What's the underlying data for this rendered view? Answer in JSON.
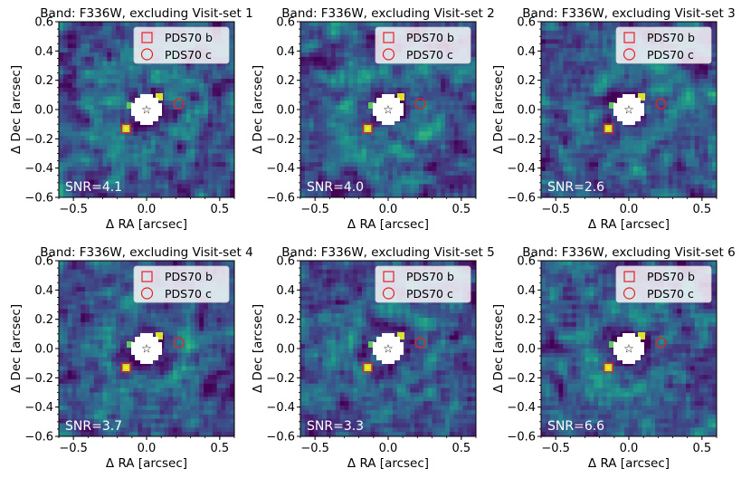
{
  "figure": {
    "grid": false,
    "colormap": "viridis",
    "colors": {
      "marker": "#e8211f",
      "mask": "#ffffff",
      "background_low": "#440154",
      "background_mid": "#31688e",
      "background_high": "#fde725"
    }
  },
  "chart_data": [
    {
      "type": "heatmap",
      "title": "Band: F336W, excluding Visit-set 1",
      "xlabel": "Δ RA [arcsec]",
      "ylabel": "Δ Dec [arcsec]",
      "xlim": [
        -0.6,
        0.6
      ],
      "ylim": [
        -0.6,
        0.6
      ],
      "xticks": [
        "−0.5",
        "0.0",
        "0.5"
      ],
      "yticks": [
        "0.6",
        "0.4",
        "0.2",
        "0.0",
        "−0.2",
        "−0.4",
        "−0.6"
      ],
      "annotation": "SNR=4.1",
      "legend": {
        "position": "top-right",
        "entries": [
          {
            "marker": "square",
            "label": "PDS70 b"
          },
          {
            "marker": "circle",
            "label": "PDS70 c"
          }
        ]
      },
      "markers": {
        "star": [
          0.0,
          0.0
        ],
        "pds70b": [
          -0.14,
          -0.13
        ],
        "pds70c": [
          0.22,
          0.04
        ]
      }
    },
    {
      "type": "heatmap",
      "title": "Band: F336W, excluding Visit-set 2",
      "xlabel": "Δ RA [arcsec]",
      "ylabel": "Δ Dec [arcsec]",
      "xlim": [
        -0.6,
        0.6
      ],
      "ylim": [
        -0.6,
        0.6
      ],
      "xticks": [
        "−0.5",
        "0.0",
        "0.5"
      ],
      "yticks": [
        "0.6",
        "0.4",
        "0.2",
        "0.0",
        "−0.2",
        "−0.4",
        "−0.6"
      ],
      "annotation": "SNR=4.0",
      "legend": {
        "position": "top-right",
        "entries": [
          {
            "marker": "square",
            "label": "PDS70 b"
          },
          {
            "marker": "circle",
            "label": "PDS70 c"
          }
        ]
      },
      "markers": {
        "star": [
          0.0,
          0.0
        ],
        "pds70b": [
          -0.14,
          -0.13
        ],
        "pds70c": [
          0.22,
          0.04
        ]
      }
    },
    {
      "type": "heatmap",
      "title": "Band: F336W, excluding Visit-set 3",
      "xlabel": "Δ RA [arcsec]",
      "ylabel": "Δ Dec [arcsec]",
      "xlim": [
        -0.6,
        0.6
      ],
      "ylim": [
        -0.6,
        0.6
      ],
      "xticks": [
        "−0.5",
        "0.0",
        "0.5"
      ],
      "yticks": [
        "0.6",
        "0.4",
        "0.2",
        "0.0",
        "−0.2",
        "−0.4",
        "−0.6"
      ],
      "annotation": "SNR=2.6",
      "legend": {
        "position": "top-right",
        "entries": [
          {
            "marker": "square",
            "label": "PDS70 b"
          },
          {
            "marker": "circle",
            "label": "PDS70 c"
          }
        ]
      },
      "markers": {
        "star": [
          0.0,
          0.0
        ],
        "pds70b": [
          -0.14,
          -0.13
        ],
        "pds70c": [
          0.22,
          0.04
        ]
      }
    },
    {
      "type": "heatmap",
      "title": "Band: F336W, excluding Visit-set 4",
      "xlabel": "Δ RA [arcsec]",
      "ylabel": "Δ Dec [arcsec]",
      "xlim": [
        -0.6,
        0.6
      ],
      "ylim": [
        -0.6,
        0.6
      ],
      "xticks": [
        "−0.5",
        "0.0",
        "0.5"
      ],
      "yticks": [
        "0.6",
        "0.4",
        "0.2",
        "0.0",
        "−0.2",
        "−0.4",
        "−0.6"
      ],
      "annotation": "SNR=3.7",
      "legend": {
        "position": "top-right",
        "entries": [
          {
            "marker": "square",
            "label": "PDS70 b"
          },
          {
            "marker": "circle",
            "label": "PDS70 c"
          }
        ]
      },
      "markers": {
        "star": [
          0.0,
          0.0
        ],
        "pds70b": [
          -0.14,
          -0.13
        ],
        "pds70c": [
          0.22,
          0.04
        ]
      }
    },
    {
      "type": "heatmap",
      "title": "Band: F336W, excluding Visit-set 5",
      "xlabel": "Δ RA [arcsec]",
      "ylabel": "Δ Dec [arcsec]",
      "xlim": [
        -0.6,
        0.6
      ],
      "ylim": [
        -0.6,
        0.6
      ],
      "xticks": [
        "−0.5",
        "0.0",
        "0.5"
      ],
      "yticks": [
        "0.6",
        "0.4",
        "0.2",
        "0.0",
        "−0.2",
        "−0.4",
        "−0.6"
      ],
      "annotation": "SNR=3.3",
      "legend": {
        "position": "top-right",
        "entries": [
          {
            "marker": "square",
            "label": "PDS70 b"
          },
          {
            "marker": "circle",
            "label": "PDS70 c"
          }
        ]
      },
      "markers": {
        "star": [
          0.0,
          0.0
        ],
        "pds70b": [
          -0.14,
          -0.13
        ],
        "pds70c": [
          0.22,
          0.04
        ]
      }
    },
    {
      "type": "heatmap",
      "title": "Band: F336W, excluding Visit-set 6",
      "xlabel": "Δ RA [arcsec]",
      "ylabel": "Δ Dec [arcsec]",
      "xlim": [
        -0.6,
        0.6
      ],
      "ylim": [
        -0.6,
        0.6
      ],
      "xticks": [
        "−0.5",
        "0.0",
        "0.5"
      ],
      "yticks": [
        "0.6",
        "0.4",
        "0.2",
        "0.0",
        "−0.2",
        "−0.4",
        "−0.6"
      ],
      "annotation": "SNR=6.6",
      "legend": {
        "position": "top-right",
        "entries": [
          {
            "marker": "square",
            "label": "PDS70 b"
          },
          {
            "marker": "circle",
            "label": "PDS70 c"
          }
        ]
      },
      "markers": {
        "star": [
          0.0,
          0.0
        ],
        "pds70b": [
          -0.14,
          -0.13
        ],
        "pds70c": [
          0.22,
          0.04
        ]
      }
    }
  ]
}
